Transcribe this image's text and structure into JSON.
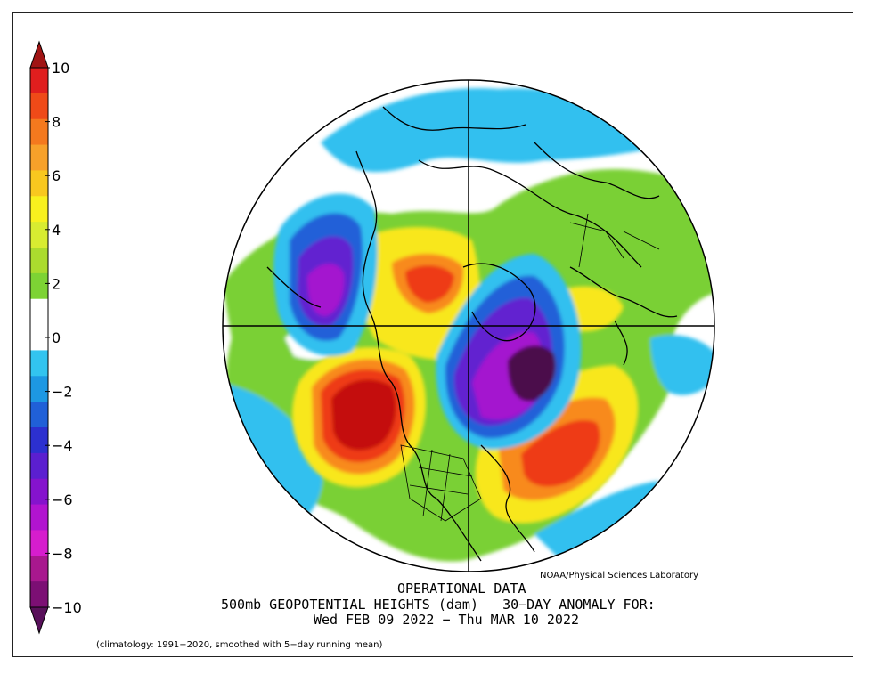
{
  "header": {
    "credit": "NOAA/Physical Sciences Laboratory"
  },
  "titles": {
    "line1": "OPERATIONAL DATA",
    "line2": "500mb GEOPOTENTIAL HEIGHTS (dam)   30−DAY ANOMALY FOR:",
    "line3": "Wed FEB 09 2022 − Thu MAR 10 2022"
  },
  "footer": {
    "climatology": "(climatology: 1991−2020, smoothed with 5−day running mean)"
  },
  "colorbar": {
    "ticks": [
      "10",
      "8",
      "6",
      "4",
      "2",
      "0",
      "−2",
      "−4",
      "−6",
      "−8",
      "−10"
    ],
    "segment_colors": [
      "#e01e1e",
      "#ef4a18",
      "#f4791e",
      "#f7a12a",
      "#f8c81f",
      "#f8f11e",
      "#d8ec31",
      "#abdb2e",
      "#7dd334",
      "#ffffff",
      "#ffffff",
      "#32c4ef",
      "#1d98e3",
      "#2060d8",
      "#2c30d0",
      "#5b1fd0",
      "#8513cd",
      "#b114d0",
      "#d61dcd",
      "#a8188e",
      "#7c0f74"
    ],
    "top_arrow_color": "#a01414",
    "bottom_arrow_color": "#58105a"
  },
  "map": {
    "projection": "polar stereographic, north pole",
    "anomaly_colors": {
      "strong_positive": "#c4100f",
      "positive_red": "#ee3a14",
      "positive_orange": "#f88a1e",
      "positive_yellow": "#f8e71e",
      "weak_positive": "#7ad034",
      "neutral": "#ffffff",
      "weak_negative": "#30c0ef",
      "negative_blue": "#2060d8",
      "negative_violet": "#6222d0",
      "negative_purple": "#a416cf",
      "strong_negative": "#4c0c4c"
    }
  }
}
